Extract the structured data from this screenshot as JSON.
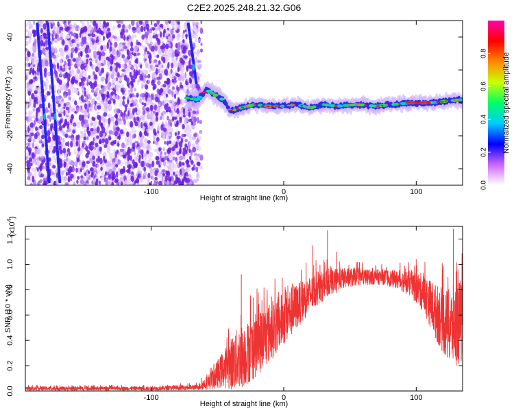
{
  "title": "C2E2.2025.248.21.32.G06",
  "colors": {
    "snr_line": "#ee3333",
    "low_amp": "#8a3cf0",
    "track": "#2d2de6",
    "axis": "#000000"
  },
  "chart_data": [
    {
      "type": "heatmap",
      "name": "spectrogram",
      "xlabel": "Height of straight line (km)",
      "ylabel": "Frequency (Hz)",
      "xlim": [
        -195,
        135
      ],
      "ylim": [
        -50,
        50
      ],
      "xticks": [
        -100,
        0,
        100
      ],
      "yticks": [
        -40,
        -20,
        0,
        20,
        40
      ],
      "xtick_labels": [
        "-100",
        "0",
        "100"
      ],
      "ytick_labels": [
        "-40",
        "-20",
        "0",
        "20",
        "40"
      ],
      "noise_region_x": [
        -195,
        -68
      ],
      "noise_region_note": "scattered low-amplitude speckle across all frequencies",
      "streaks": [
        {
          "x0": -186,
          "y0": 48,
          "x1": -177,
          "y1": -48
        },
        {
          "x0": -178,
          "y0": 48,
          "x1": -169,
          "y1": -48
        },
        {
          "x0": -72,
          "y0": 48,
          "x1": -66,
          "y1": 12
        }
      ],
      "track": [
        {
          "x": -73,
          "f": 3
        },
        {
          "x": -65,
          "f": 2
        },
        {
          "x": -58,
          "f": 8
        },
        {
          "x": -52,
          "f": 5
        },
        {
          "x": -46,
          "f": 2
        },
        {
          "x": -40,
          "f": -5
        },
        {
          "x": -32,
          "f": -3
        },
        {
          "x": -22,
          "f": -1
        },
        {
          "x": -12,
          "f": -2
        },
        {
          "x": 0,
          "f": -2
        },
        {
          "x": 10,
          "f": -1
        },
        {
          "x": 20,
          "f": -3
        },
        {
          "x": 30,
          "f": -1
        },
        {
          "x": 40,
          "f": -2
        },
        {
          "x": 55,
          "f": -1
        },
        {
          "x": 70,
          "f": -2
        },
        {
          "x": 82,
          "f": -1
        },
        {
          "x": 95,
          "f": 0
        },
        {
          "x": 110,
          "f": 0
        },
        {
          "x": 122,
          "f": 1
        },
        {
          "x": 135,
          "f": 2
        }
      ],
      "colorbar": {
        "label": "Normalized spectral amplitude",
        "range": [
          0,
          1
        ],
        "ticks": [
          0.0,
          0.2,
          0.4,
          0.6,
          0.8
        ],
        "tick_labels": [
          "0.0",
          "0.2",
          "0.4",
          "0.6",
          "0.8"
        ],
        "colors": [
          "#ffffff",
          "#cc66ff",
          "#0000ff",
          "#00ccff",
          "#00ff66",
          "#ccff00",
          "#ff8800",
          "#ff0000",
          "#ff00aa"
        ]
      }
    },
    {
      "type": "line",
      "name": "snr",
      "xlabel": "Height of straight line (km)",
      "ylabel": "SNR (10 * v/v)",
      "multiplier": "(x10",
      "multiplier_exp": "4",
      "multiplier_close": ")",
      "xlim": [
        -195,
        135
      ],
      "ylim": [
        0,
        1.3
      ],
      "xticks": [
        -100,
        0,
        100
      ],
      "yticks": [
        0.0,
        0.2,
        0.4,
        0.6,
        0.8,
        1.0,
        1.2
      ],
      "xtick_labels": [
        "-100",
        "0",
        "100"
      ],
      "ytick_labels": [
        "0.0",
        "0.2",
        "0.4",
        "0.6",
        "0.8",
        "1.0",
        "1.2"
      ],
      "envelope_x": [
        -195,
        -100,
        -65,
        -55,
        -45,
        -35,
        -25,
        -15,
        -5,
        5,
        15,
        25,
        35,
        45,
        55,
        65,
        75,
        85,
        95,
        105,
        115,
        125,
        135
      ],
      "envelope_mean": [
        0.02,
        0.02,
        0.03,
        0.08,
        0.18,
        0.25,
        0.32,
        0.42,
        0.52,
        0.62,
        0.72,
        0.8,
        0.86,
        0.89,
        0.9,
        0.9,
        0.9,
        0.88,
        0.85,
        0.78,
        0.62,
        0.5,
        0.55
      ],
      "envelope_spread": [
        0.015,
        0.015,
        0.02,
        0.07,
        0.15,
        0.25,
        0.25,
        0.25,
        0.22,
        0.2,
        0.16,
        0.13,
        0.1,
        0.08,
        0.07,
        0.06,
        0.06,
        0.07,
        0.1,
        0.15,
        0.22,
        0.3,
        0.35
      ],
      "peaks": [
        {
          "x": -32,
          "y": 0.92
        },
        {
          "x": 22,
          "y": 1.15
        },
        {
          "x": 33,
          "y": 1.27
        },
        {
          "x": 40,
          "y": 1.1
        },
        {
          "x": 128,
          "y": 1.28
        }
      ]
    }
  ]
}
